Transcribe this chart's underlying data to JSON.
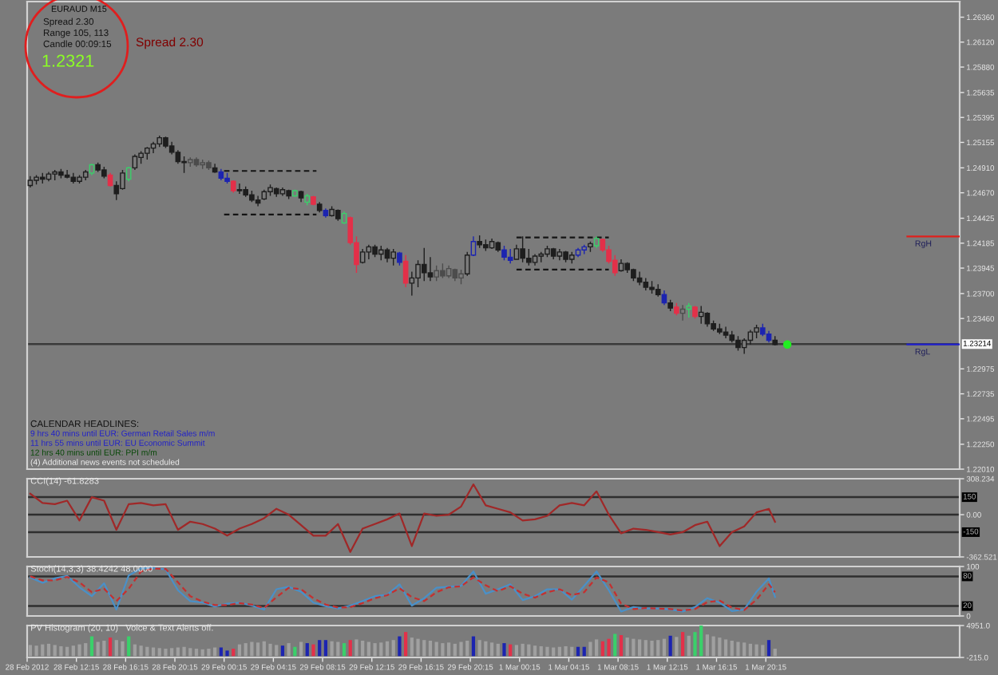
{
  "chart_data": [
    {
      "type": "candlestick",
      "title": "EURAUD M15",
      "x": [
        "2012-02-28T08:30",
        "2012-02-28T09:00",
        "2012-02-28T09:30",
        "2012-02-28T10:00",
        "2012-02-28T10:30",
        "2012-02-28T11:00",
        "2012-02-28T11:30",
        "2012-02-28T12:00",
        "2012-02-28T12:30",
        "2012-02-28T13:00",
        "2012-02-28T13:30",
        "2012-02-28T14:00",
        "2012-02-28T14:30",
        "2012-02-28T15:00",
        "2012-02-28T15:30",
        "2012-02-28T16:00",
        "2012-02-28T16:30",
        "2012-02-28T17:00",
        "2012-02-28T17:30",
        "2012-02-28T18:00",
        "2012-02-28T18:30",
        "2012-02-28T19:00",
        "2012-02-28T19:30",
        "2012-02-28T20:00",
        "2012-02-28T20:30",
        "2012-02-28T21:00",
        "2012-02-28T21:30",
        "2012-02-28T22:00",
        "2012-02-28T22:30",
        "2012-02-28T23:00",
        "2012-02-28T23:30",
        "2012-02-29T00:00",
        "2012-02-29T00:30",
        "2012-02-29T01:00",
        "2012-02-29T01:30",
        "2012-02-29T02:00",
        "2012-02-29T02:30",
        "2012-02-29T03:00",
        "2012-02-29T03:30",
        "2012-02-29T04:00",
        "2012-02-29T04:30",
        "2012-02-29T05:00",
        "2012-02-29T05:30",
        "2012-02-29T06:00",
        "2012-02-29T06:30",
        "2012-02-29T07:00",
        "2012-02-29T07:30",
        "2012-02-29T08:00",
        "2012-02-29T08:30",
        "2012-02-29T09:00",
        "2012-02-29T09:30",
        "2012-02-29T10:00",
        "2012-02-29T10:30",
        "2012-02-29T11:00",
        "2012-02-29T11:30",
        "2012-02-29T12:00",
        "2012-02-29T12:30",
        "2012-02-29T13:00",
        "2012-02-29T13:30",
        "2012-02-29T14:00",
        "2012-02-29T14:30",
        "2012-02-29T15:00",
        "2012-02-29T15:30",
        "2012-02-29T16:00",
        "2012-02-29T16:30",
        "2012-02-29T17:00",
        "2012-02-29T17:30",
        "2012-02-29T18:00",
        "2012-02-29T18:30",
        "2012-02-29T19:00",
        "2012-02-29T19:30",
        "2012-02-29T20:00",
        "2012-02-29T20:30",
        "2012-02-29T21:00",
        "2012-02-29T21:30",
        "2012-02-29T22:00",
        "2012-02-29T22:30",
        "2012-02-29T23:00",
        "2012-02-29T23:30",
        "2012-03-01T00:00",
        "2012-03-01T00:30",
        "2012-03-01T01:00",
        "2012-03-01T01:30",
        "2012-03-01T02:00",
        "2012-03-01T02:30",
        "2012-03-01T03:00",
        "2012-03-01T03:30",
        "2012-03-01T04:00",
        "2012-03-01T04:30",
        "2012-03-01T05:00",
        "2012-03-01T05:30",
        "2012-03-01T06:00",
        "2012-03-01T06:30",
        "2012-03-01T07:00",
        "2012-03-01T07:30",
        "2012-03-01T08:00",
        "2012-03-01T08:30",
        "2012-03-01T09:00",
        "2012-03-01T09:30",
        "2012-03-01T10:00",
        "2012-03-01T10:30",
        "2012-03-01T11:00",
        "2012-03-01T11:30",
        "2012-03-01T12:00",
        "2012-03-01T12:30",
        "2012-03-01T13:00",
        "2012-03-01T13:30",
        "2012-03-01T14:00",
        "2012-03-01T14:30",
        "2012-03-01T15:00",
        "2012-03-01T15:30",
        "2012-03-01T16:00",
        "2012-03-01T16:30",
        "2012-03-01T17:00",
        "2012-03-01T17:30",
        "2012-03-01T18:00",
        "2012-03-01T18:30",
        "2012-03-01T19:00",
        "2012-03-01T19:30",
        "2012-03-01T20:00",
        "2012-03-01T20:30",
        "2012-03-01T21:00"
      ],
      "ohlc": [
        [
          1.2474,
          1.2483,
          1.2472,
          1.2479
        ],
        [
          1.2479,
          1.2484,
          1.2475,
          1.2482
        ],
        [
          1.2482,
          1.2486,
          1.2476,
          1.248
        ],
        [
          1.248,
          1.2487,
          1.2478,
          1.2485
        ],
        [
          1.2485,
          1.2489,
          1.2479,
          1.2487
        ],
        [
          1.2487,
          1.249,
          1.2481,
          1.2484
        ],
        [
          1.2484,
          1.2489,
          1.2481,
          1.2482
        ],
        [
          1.2482,
          1.2486,
          1.2476,
          1.2478
        ],
        [
          1.2478,
          1.2484,
          1.2476,
          1.2482
        ],
        [
          1.2482,
          1.2489,
          1.2479,
          1.2487
        ],
        [
          1.2486,
          1.2495,
          1.2484,
          1.2494
        ],
        [
          1.2494,
          1.2496,
          1.2487,
          1.2489
        ],
        [
          1.2489,
          1.2492,
          1.2481,
          1.2483
        ],
        [
          1.2484,
          1.2486,
          1.2473,
          1.2474
        ],
        [
          1.2474,
          1.2478,
          1.246,
          1.2466
        ],
        [
          1.2471,
          1.2489,
          1.247,
          1.2486
        ],
        [
          1.248,
          1.2492,
          1.2478,
          1.2491
        ],
        [
          1.2491,
          1.2504,
          1.2489,
          1.2502
        ],
        [
          1.2501,
          1.2507,
          1.2495,
          1.2505
        ],
        [
          1.2505,
          1.2511,
          1.2499,
          1.251
        ],
        [
          1.251,
          1.2516,
          1.2505,
          1.2514
        ],
        [
          1.2514,
          1.2522,
          1.2511,
          1.252
        ],
        [
          1.252,
          1.2521,
          1.251,
          1.2512
        ],
        [
          1.2512,
          1.2516,
          1.2504,
          1.2506
        ],
        [
          1.2506,
          1.2508,
          1.2495,
          1.2497
        ],
        [
          1.2497,
          1.2502,
          1.2486,
          1.2496
        ],
        [
          1.2496,
          1.2501,
          1.2492,
          1.2499
        ],
        [
          1.2499,
          1.2501,
          1.2492,
          1.2494
        ],
        [
          1.2494,
          1.2499,
          1.249,
          1.2496
        ],
        [
          1.2496,
          1.2498,
          1.2489,
          1.2491
        ],
        [
          1.2491,
          1.2495,
          1.2486,
          1.2487
        ],
        [
          1.2487,
          1.249,
          1.2479,
          1.2481
        ],
        [
          1.2481,
          1.2486,
          1.2476,
          1.2478
        ],
        [
          1.2478,
          1.2479,
          1.2467,
          1.2469
        ],
        [
          1.2469,
          1.2476,
          1.2466,
          1.247
        ],
        [
          1.247,
          1.2473,
          1.2463,
          1.2465
        ],
        [
          1.2465,
          1.2469,
          1.2458,
          1.246
        ],
        [
          1.246,
          1.2464,
          1.2454,
          1.2457
        ],
        [
          1.2461,
          1.247,
          1.246,
          1.2468
        ],
        [
          1.2468,
          1.2475,
          1.2464,
          1.2472
        ],
        [
          1.2471,
          1.2472,
          1.2463,
          1.2466
        ],
        [
          1.2466,
          1.2472,
          1.2464,
          1.247
        ],
        [
          1.2469,
          1.247,
          1.2461,
          1.2464
        ],
        [
          1.2464,
          1.247,
          1.2463,
          1.2469
        ],
        [
          1.2468,
          1.2469,
          1.2458,
          1.2462
        ],
        [
          1.2458,
          1.2466,
          1.2455,
          1.2464
        ],
        [
          1.2463,
          1.2464,
          1.2455,
          1.2456
        ],
        [
          1.2456,
          1.2458,
          1.2448,
          1.245
        ],
        [
          1.245,
          1.2452,
          1.2443,
          1.2445
        ],
        [
          1.2445,
          1.2454,
          1.2444,
          1.2451
        ],
        [
          1.245,
          1.2451,
          1.244,
          1.2442
        ],
        [
          1.2438,
          1.2449,
          1.2437,
          1.2447
        ],
        [
          1.2443,
          1.2444,
          1.2417,
          1.2419
        ],
        [
          1.2419,
          1.2425,
          1.239,
          1.2398
        ],
        [
          1.24,
          1.2413,
          1.2399,
          1.241
        ],
        [
          1.241,
          1.2417,
          1.2403,
          1.2415
        ],
        [
          1.2415,
          1.2417,
          1.2405,
          1.2408
        ],
        [
          1.2408,
          1.2416,
          1.2402,
          1.2412
        ],
        [
          1.2412,
          1.2414,
          1.24,
          1.2404
        ],
        [
          1.2404,
          1.2413,
          1.2397,
          1.241
        ],
        [
          1.2409,
          1.241,
          1.2397,
          1.24
        ],
        [
          1.2401,
          1.2407,
          1.2376,
          1.238
        ],
        [
          1.238,
          1.2391,
          1.2368,
          1.2385
        ],
        [
          1.2385,
          1.2402,
          1.2376,
          1.2398
        ],
        [
          1.2398,
          1.2414,
          1.2382,
          1.239
        ],
        [
          1.239,
          1.2405,
          1.2382,
          1.2386
        ],
        [
          1.2386,
          1.2397,
          1.2382,
          1.2392
        ],
        [
          1.2392,
          1.2399,
          1.2385,
          1.2387
        ],
        [
          1.2387,
          1.2397,
          1.2385,
          1.2394
        ],
        [
          1.2393,
          1.2394,
          1.2382,
          1.2385
        ],
        [
          1.2385,
          1.2393,
          1.2379,
          1.2389
        ],
        [
          1.2389,
          1.241,
          1.2387,
          1.2407
        ],
        [
          1.2407,
          1.2425,
          1.2406,
          1.242
        ],
        [
          1.242,
          1.2426,
          1.2414,
          1.2417
        ],
        [
          1.2417,
          1.2422,
          1.2411,
          1.2414
        ],
        [
          1.2414,
          1.2423,
          1.2413,
          1.242
        ],
        [
          1.2419,
          1.242,
          1.241,
          1.2412
        ],
        [
          1.2412,
          1.2416,
          1.2402,
          1.2405
        ],
        [
          1.2405,
          1.2413,
          1.2399,
          1.2402
        ],
        [
          1.2403,
          1.2417,
          1.2403,
          1.2413
        ],
        [
          1.2413,
          1.2425,
          1.24,
          1.2404
        ],
        [
          1.2404,
          1.2413,
          1.2397,
          1.24
        ],
        [
          1.24,
          1.2408,
          1.2397,
          1.2406
        ],
        [
          1.2406,
          1.241,
          1.24,
          1.2408
        ],
        [
          1.2408,
          1.2416,
          1.2405,
          1.2413
        ],
        [
          1.2413,
          1.2414,
          1.2403,
          1.2406
        ],
        [
          1.2406,
          1.2413,
          1.2402,
          1.241
        ],
        [
          1.241,
          1.2411,
          1.24,
          1.2403
        ],
        [
          1.2403,
          1.241,
          1.2399,
          1.2407
        ],
        [
          1.2407,
          1.2414,
          1.2405,
          1.2412
        ],
        [
          1.2412,
          1.2417,
          1.2408,
          1.2415
        ],
        [
          1.2415,
          1.242,
          1.241,
          1.2418
        ],
        [
          1.2416,
          1.2425,
          1.2414,
          1.2423
        ],
        [
          1.2422,
          1.2423,
          1.241,
          1.2412
        ],
        [
          1.2412,
          1.2416,
          1.2399,
          1.2401
        ],
        [
          1.2402,
          1.2407,
          1.2387,
          1.239
        ],
        [
          1.2392,
          1.2403,
          1.2391,
          1.2399
        ],
        [
          1.2399,
          1.24,
          1.239,
          1.2393
        ],
        [
          1.2393,
          1.2394,
          1.2382,
          1.2385
        ],
        [
          1.2385,
          1.2391,
          1.2378,
          1.2381
        ],
        [
          1.2381,
          1.2385,
          1.2373,
          1.2376
        ],
        [
          1.2376,
          1.2382,
          1.237,
          1.2374
        ],
        [
          1.2374,
          1.2379,
          1.2367,
          1.2369
        ],
        [
          1.2369,
          1.2373,
          1.2359,
          1.2361
        ],
        [
          1.2361,
          1.2364,
          1.2353,
          1.2356
        ],
        [
          1.2357,
          1.2361,
          1.2349,
          1.2351
        ],
        [
          1.2351,
          1.2359,
          1.2344,
          1.2355
        ],
        [
          1.2355,
          1.2361,
          1.2347,
          1.2358
        ],
        [
          1.2357,
          1.2358,
          1.2346,
          1.2348
        ],
        [
          1.2348,
          1.2358,
          1.2341,
          1.2352
        ],
        [
          1.2351,
          1.2352,
          1.2338,
          1.2341
        ],
        [
          1.2341,
          1.2344,
          1.2334,
          1.2336
        ],
        [
          1.2336,
          1.2341,
          1.2331,
          1.2333
        ],
        [
          1.2333,
          1.2338,
          1.2327,
          1.233
        ],
        [
          1.233,
          1.2334,
          1.2323,
          1.2325
        ],
        [
          1.2325,
          1.2329,
          1.2315,
          1.2318
        ],
        [
          1.2318,
          1.2327,
          1.2312,
          1.2325
        ],
        [
          1.2325,
          1.2335,
          1.2321,
          1.2333
        ],
        [
          1.2333,
          1.234,
          1.2327,
          1.2337
        ],
        [
          1.2337,
          1.2341,
          1.2329,
          1.2331
        ],
        [
          1.2331,
          1.2334,
          1.2323,
          1.2325
        ],
        [
          1.2325,
          1.2329,
          1.232,
          1.2321
        ]
      ],
      "colors": [
        "#1e1e1e",
        "#1e1e1e",
        "#1e1e1e",
        "#1e1e1e",
        "#1e1e1e",
        "#1e1e1e",
        "#1e1e1e",
        "#1e1e1e",
        "#1e1e1e",
        "#1e1e1e",
        "#3ad06a",
        "#1e1e1e",
        "#1e1e1e",
        "#e33049",
        "#1e1e1e",
        "#1e1e1e",
        "#3ad06a",
        "#1e1e1e",
        "#1e1e1e",
        "#1e1e1e",
        "#1e1e1e",
        "#1e1e1e",
        "#1e1e1e",
        "#1e1e1e",
        "#1e1e1e",
        "#1e1e1e",
        "#4c4c4c",
        "#4c4c4c",
        "#4c4c4c",
        "#4c4c4c",
        "#1e1e1e",
        "#1c24b0",
        "#1c24b0",
        "#e33049",
        "#1e1e1e",
        "#1e1e1e",
        "#1e1e1e",
        "#1e1e1e",
        "#1e1e1e",
        "#1e1e1e",
        "#1e1e1e",
        "#1e1e1e",
        "#1e1e1e",
        "#3ad06a",
        "#1e1e1e",
        "#3ad06a",
        "#e33049",
        "#1e1e1e",
        "#1c24b0",
        "#1e1e1e",
        "#1e1e1e",
        "#3ad06a",
        "#e33049",
        "#e33049",
        "#1e1e1e",
        "#1e1e1e",
        "#1e1e1e",
        "#1e1e1e",
        "#1e1e1e",
        "#1e1e1e",
        "#1c24b0",
        "#e33049",
        "#1e1e1e",
        "#1e1e1e",
        "#1e1e1e",
        "#1e1e1e",
        "#4c4c4c",
        "#4c4c4c",
        "#4c4c4c",
        "#4c4c4c",
        "#4c4c4c",
        "#1e1e1e",
        "#1c24b0",
        "#1e1e1e",
        "#1e1e1e",
        "#1e1e1e",
        "#1e1e1e",
        "#1c24b0",
        "#1c24b0",
        "#1e1e1e",
        "#1e1e1e",
        "#1e1e1e",
        "#1e1e1e",
        "#1e1e1e",
        "#1e1e1e",
        "#1e1e1e",
        "#1e1e1e",
        "#1e1e1e",
        "#1e1e1e",
        "#1c24b0",
        "#1c24b0",
        "#1e1e1e",
        "#3ad06a",
        "#e33049",
        "#e33049",
        "#e33049",
        "#1e1e1e",
        "#1e1e1e",
        "#1e1e1e",
        "#1e1e1e",
        "#1e1e1e",
        "#1e1e1e",
        "#1e1e1e",
        "#1c24b0",
        "#1e1e1e",
        "#e33049",
        "#4c4c4c",
        "#3ad06a",
        "#e33049",
        "#1e1e1e",
        "#1e1e1e",
        "#1e1e1e",
        "#1e1e1e",
        "#1e1e1e",
        "#1e1e1e",
        "#1e1e1e",
        "#1e1e1e",
        "#1e1e1e",
        "#1e1e1e",
        "#1c24b0",
        "#1c24b0",
        "#1e1e1e"
      ],
      "series": [
        {
          "type": "line",
          "x": [
            "2012-02-29T00:15",
            "2012-02-29T07:45"
          ],
          "values": [
            1.2488,
            1.2488
          ],
          "color": "#141414",
          "line_style": "dashed"
        },
        {
          "type": "line",
          "x": [
            "2012-02-29T00:15",
            "2012-02-29T07:45"
          ],
          "values": [
            1.2446,
            1.2446
          ],
          "color": "#141414",
          "line_style": "dashed"
        },
        {
          "type": "line",
          "x": [
            "2012-03-01T00:00",
            "2012-03-01T07:30"
          ],
          "values": [
            1.2424,
            1.2424
          ],
          "color": "#141414",
          "line_style": "dashed"
        },
        {
          "type": "line",
          "x": [
            "2012-03-01T00:00",
            "2012-03-01T07:30"
          ],
          "values": [
            1.2393,
            1.2393
          ],
          "color": "#141414",
          "line_style": "dashed"
        },
        {
          "type": "line",
          "x": [
            "2012-03-02T07:45",
            "2012-03-02T12:00"
          ],
          "values": [
            1.2425,
            1.2425
          ],
          "color": "#e0201c"
        },
        {
          "type": "line",
          "x": [
            "2012-03-02T07:45",
            "2012-03-02T12:00"
          ],
          "values": [
            1.2321,
            1.2321
          ],
          "color": "#2020d0"
        },
        {
          "type": "scatter",
          "x": [
            "2012-03-01T22:00"
          ],
          "values": [
            1.2321
          ],
          "color": "#22ee22",
          "marker": "circle"
        }
      ],
      "ref_lines": [
        {
          "axis": "y",
          "value": 1.23214,
          "label": "1.23214",
          "color": "#3a3a3a"
        }
      ],
      "annotations": [
        "Spread 2.30",
        "Range 105, 113",
        "Candle 00:09:15",
        "1.2321",
        "Spread 2.30",
        "CALENDAR HEADLINES:",
        "9 hrs 40 mins until EUR: German Retail Sales m/m",
        "11 hrs 55 mins until EUR: EU Economic Summit",
        "12 hrs 40 mins until EUR: PPI m/m",
        "(4) Additional news events not scheduled",
        {
          "text": "RgH",
          "x": "2012-03-02T08:00",
          "y": 1.2425
        },
        {
          "text": "RgL",
          "x": "2012-03-02T08:00",
          "y": 1.2321
        }
      ],
      "xlim": [
        "2012-02-28T08:15",
        "2012-03-02T12:00"
      ],
      "ylim": [
        1.2201,
        1.2651
      ],
      "yticks": [
        {
          "value": 1.2636,
          "label": "1.26360"
        },
        {
          "value": 1.2612,
          "label": "1.26120"
        },
        {
          "value": 1.2588,
          "label": "1.25880"
        },
        {
          "value": 1.25635,
          "label": "1.25635"
        },
        {
          "value": 1.25395,
          "label": "1.25395"
        },
        {
          "value": 1.25155,
          "label": "1.25155"
        },
        {
          "value": 1.2491,
          "label": "1.24910"
        },
        {
          "value": 1.2467,
          "label": "1.24670"
        },
        {
          "value": 1.24425,
          "label": "1.24425"
        },
        {
          "value": 1.24185,
          "label": "1.24185"
        },
        {
          "value": 1.23945,
          "label": "1.23945"
        },
        {
          "value": 1.237,
          "label": "1.23700"
        },
        {
          "value": 1.2346,
          "label": "1.23460"
        },
        {
          "value": 1.22975,
          "label": "1.22975"
        },
        {
          "value": 1.22735,
          "label": "1.22735"
        },
        {
          "value": 1.22495,
          "label": "1.22495"
        },
        {
          "value": 1.2225,
          "label": "1.22250"
        },
        {
          "value": 1.2201,
          "label": "1.22010"
        }
      ],
      "tick_labels": "y"
    },
    {
      "type": "line",
      "title": "CCI(14) -61.8283",
      "x": [
        "2012-02-28T08:30",
        "2012-02-28T09:30",
        "2012-02-28T10:30",
        "2012-02-28T11:30",
        "2012-02-28T12:30",
        "2012-02-28T13:30",
        "2012-02-28T14:30",
        "2012-02-28T15:30",
        "2012-02-28T16:30",
        "2012-02-28T17:30",
        "2012-02-28T18:30",
        "2012-02-28T19:30",
        "2012-02-28T20:30",
        "2012-02-28T21:30",
        "2012-02-28T22:30",
        "2012-02-28T23:30",
        "2012-02-29T00:30",
        "2012-02-29T01:30",
        "2012-02-29T02:30",
        "2012-02-29T03:30",
        "2012-02-29T04:30",
        "2012-02-29T05:30",
        "2012-02-29T06:30",
        "2012-02-29T07:30",
        "2012-02-29T08:30",
        "2012-02-29T09:30",
        "2012-02-29T10:30",
        "2012-02-29T11:30",
        "2012-02-29T12:30",
        "2012-02-29T13:30",
        "2012-02-29T14:30",
        "2012-02-29T15:30",
        "2012-02-29T16:30",
        "2012-02-29T17:30",
        "2012-02-29T18:30",
        "2012-02-29T19:30",
        "2012-02-29T20:30",
        "2012-02-29T21:30",
        "2012-02-29T22:30",
        "2012-02-29T23:30",
        "2012-03-01T00:30",
        "2012-03-01T01:30",
        "2012-03-01T02:30",
        "2012-03-01T03:30",
        "2012-03-01T04:30",
        "2012-03-01T05:30",
        "2012-03-01T06:30",
        "2012-03-01T07:30",
        "2012-03-01T08:30",
        "2012-03-01T09:30",
        "2012-03-01T10:30",
        "2012-03-01T11:30",
        "2012-03-01T12:30",
        "2012-03-01T13:30",
        "2012-03-01T14:30",
        "2012-03-01T15:30",
        "2012-03-01T16:30",
        "2012-03-01T17:30",
        "2012-03-01T18:30",
        "2012-03-01T19:30",
        "2012-03-01T20:30",
        "2012-03-01T21:00"
      ],
      "series": [
        {
          "color": "#a02828",
          "values": [
            180,
            100,
            90,
            120,
            -50,
            150,
            120,
            -130,
            90,
            100,
            80,
            90,
            -130,
            -60,
            -80,
            -120,
            -180,
            -120,
            -80,
            -30,
            50,
            0,
            -90,
            -180,
            -180,
            -80,
            -320,
            -120,
            -80,
            -40,
            10,
            -270,
            10,
            -10,
            0,
            70,
            260,
            80,
            50,
            20,
            -50,
            -40,
            -10,
            80,
            100,
            80,
            200,
            0,
            -160,
            -120,
            -130,
            -150,
            -170,
            -150,
            -90,
            -60,
            -270,
            -150,
            -100,
            20,
            50,
            -61.8283
          ]
        }
      ],
      "xlim": [
        "2012-02-28T08:15",
        "2012-03-02T12:00"
      ],
      "ylim": [
        -362.521,
        308.234
      ],
      "yticks": [
        {
          "value": 308.234,
          "label": "308.234"
        },
        {
          "value": 0,
          "label": "0.00"
        },
        {
          "value": -362.521,
          "label": "-362.521"
        }
      ],
      "ref_lines": [
        {
          "axis": "y",
          "value": 150,
          "label": "150",
          "color": "#2e2e2e"
        },
        {
          "axis": "y",
          "value": 0,
          "color": "#2e2e2e"
        },
        {
          "axis": "y",
          "value": -150,
          "label": "-150",
          "color": "#2e2e2e"
        }
      ],
      "tick_labels": "y"
    },
    {
      "type": "line",
      "title": "Stoch(14,3,3) 38.4242 48.0000",
      "x": [
        "2012-02-28T08:30",
        "2012-02-28T09:30",
        "2012-02-28T10:30",
        "2012-02-28T11:30",
        "2012-02-28T12:30",
        "2012-02-28T13:30",
        "2012-02-28T14:30",
        "2012-02-28T15:30",
        "2012-02-28T16:30",
        "2012-02-28T17:30",
        "2012-02-28T18:30",
        "2012-02-28T19:30",
        "2012-02-28T20:30",
        "2012-02-28T21:30",
        "2012-02-28T22:30",
        "2012-02-28T23:30",
        "2012-02-29T00:30",
        "2012-02-29T01:30",
        "2012-02-29T02:30",
        "2012-02-29T03:30",
        "2012-02-29T04:30",
        "2012-02-29T05:30",
        "2012-02-29T06:30",
        "2012-02-29T07:30",
        "2012-02-29T08:30",
        "2012-02-29T09:30",
        "2012-02-29T10:30",
        "2012-02-29T11:30",
        "2012-02-29T12:30",
        "2012-02-29T13:30",
        "2012-02-29T14:30",
        "2012-02-29T15:30",
        "2012-02-29T16:30",
        "2012-02-29T17:30",
        "2012-02-29T18:30",
        "2012-02-29T19:30",
        "2012-02-29T20:30",
        "2012-02-29T21:30",
        "2012-02-29T22:30",
        "2012-02-29T23:30",
        "2012-03-01T00:30",
        "2012-03-01T01:30",
        "2012-03-01T02:30",
        "2012-03-01T03:30",
        "2012-03-01T04:30",
        "2012-03-01T05:30",
        "2012-03-01T06:30",
        "2012-03-01T07:30",
        "2012-03-01T08:30",
        "2012-03-01T09:30",
        "2012-03-01T10:30",
        "2012-03-01T11:30",
        "2012-03-01T12:30",
        "2012-03-01T13:30",
        "2012-03-01T14:30",
        "2012-03-01T15:30",
        "2012-03-01T16:30",
        "2012-03-01T17:30",
        "2012-03-01T18:30",
        "2012-03-01T19:30",
        "2012-03-01T20:30",
        "2012-03-01T21:00"
      ],
      "series": [
        {
          "color": "#4a90c8",
          "values": [
            78,
            67,
            76,
            81,
            58,
            40,
            66,
            13,
            82,
            96,
            97,
            94,
            52,
            30,
            27,
            19,
            25,
            27,
            21,
            13,
            54,
            59,
            49,
            27,
            20,
            15,
            21,
            30,
            40,
            43,
            64,
            21,
            36,
            57,
            59,
            61,
            90,
            45,
            54,
            64,
            32,
            40,
            54,
            54,
            33,
            61,
            90,
            52,
            9,
            18,
            15,
            15,
            13,
            9,
            18,
            36,
            27,
            10,
            13,
            49,
            76,
            38.4242
          ]
        },
        {
          "color": "#c43030",
          "line_style": "dashed",
          "values": [
            80,
            72,
            72,
            79,
            68,
            48,
            55,
            30,
            55,
            90,
            96,
            95,
            68,
            40,
            29,
            22,
            22,
            26,
            23,
            16,
            38,
            57,
            54,
            36,
            23,
            17,
            18,
            26,
            36,
            42,
            56,
            38,
            30,
            48,
            58,
            60,
            78,
            62,
            50,
            60,
            45,
            37,
            48,
            54,
            42,
            48,
            78,
            68,
            25,
            14,
            16,
            15,
            14,
            11,
            14,
            28,
            31,
            17,
            12,
            33,
            64,
            48.0
          ]
        }
      ],
      "xlim": [
        "2012-02-28T08:15",
        "2012-03-02T12:00"
      ],
      "ylim": [
        0,
        100
      ],
      "yticks": [
        100,
        0
      ],
      "ref_lines": [
        {
          "axis": "y",
          "value": 80,
          "label": "80",
          "color": "#2e2e2e"
        },
        {
          "axis": "y",
          "value": 20,
          "label": "20",
          "color": "#2e2e2e"
        }
      ],
      "tick_labels": "y"
    },
    {
      "type": "bar",
      "title": "PV Histogram (20, 10)   Voice & Text Alerts off.",
      "x": [
        "2012-02-28T08:30",
        "2012-02-28T09:00",
        "2012-02-28T09:30",
        "2012-02-28T10:00",
        "2012-02-28T10:30",
        "2012-02-28T11:00",
        "2012-02-28T11:30",
        "2012-02-28T12:00",
        "2012-02-28T12:30",
        "2012-02-28T13:00",
        "2012-02-28T13:30",
        "2012-02-28T14:00",
        "2012-02-28T14:30",
        "2012-02-28T15:00",
        "2012-02-28T15:30",
        "2012-02-28T16:00",
        "2012-02-28T16:30",
        "2012-02-28T17:00",
        "2012-02-28T17:30",
        "2012-02-28T18:00",
        "2012-02-28T18:30",
        "2012-02-28T19:00",
        "2012-02-28T19:30",
        "2012-02-28T20:00",
        "2012-02-28T20:30",
        "2012-02-28T21:00",
        "2012-02-28T21:30",
        "2012-02-28T22:00",
        "2012-02-28T22:30",
        "2012-02-28T23:00",
        "2012-02-28T23:30",
        "2012-02-29T00:00",
        "2012-02-29T00:30",
        "2012-02-29T01:00",
        "2012-02-29T01:30",
        "2012-02-29T02:00",
        "2012-02-29T02:30",
        "2012-02-29T03:00",
        "2012-02-29T03:30",
        "2012-02-29T04:00",
        "2012-02-29T04:30",
        "2012-02-29T05:00",
        "2012-02-29T05:30",
        "2012-02-29T06:00",
        "2012-02-29T06:30",
        "2012-02-29T07:00",
        "2012-02-29T07:30",
        "2012-02-29T08:00",
        "2012-02-29T08:30",
        "2012-02-29T09:00",
        "2012-02-29T09:30",
        "2012-02-29T10:00",
        "2012-02-29T10:30",
        "2012-02-29T11:00",
        "2012-02-29T11:30",
        "2012-02-29T12:00",
        "2012-02-29T12:30",
        "2012-02-29T13:00",
        "2012-02-29T13:30",
        "2012-02-29T14:00",
        "2012-02-29T14:30",
        "2012-02-29T15:00",
        "2012-02-29T15:30",
        "2012-02-29T16:00",
        "2012-02-29T16:30",
        "2012-02-29T17:00",
        "2012-02-29T17:30",
        "2012-02-29T18:00",
        "2012-02-29T18:30",
        "2012-02-29T19:00",
        "2012-02-29T19:30",
        "2012-02-29T20:00",
        "2012-02-29T20:30",
        "2012-02-29T21:00",
        "2012-02-29T21:30",
        "2012-02-29T22:00",
        "2012-02-29T22:30",
        "2012-02-29T23:00",
        "2012-02-29T23:30",
        "2012-03-01T00:00",
        "2012-03-01T00:30",
        "2012-03-01T01:00",
        "2012-03-01T01:30",
        "2012-03-01T02:00",
        "2012-03-01T02:30",
        "2012-03-01T03:00",
        "2012-03-01T03:30",
        "2012-03-01T04:00",
        "2012-03-01T04:30",
        "2012-03-01T05:00",
        "2012-03-01T05:30",
        "2012-03-01T06:00",
        "2012-03-01T06:30",
        "2012-03-01T07:00",
        "2012-03-01T07:30",
        "2012-03-01T08:00",
        "2012-03-01T08:30",
        "2012-03-01T09:00",
        "2012-03-01T09:30",
        "2012-03-01T10:00",
        "2012-03-01T10:30",
        "2012-03-01T11:00",
        "2012-03-01T11:30",
        "2012-03-01T12:00",
        "2012-03-01T12:30",
        "2012-03-01T13:00",
        "2012-03-01T13:30",
        "2012-03-01T14:00",
        "2012-03-01T14:30",
        "2012-03-01T15:00",
        "2012-03-01T15:30",
        "2012-03-01T16:00",
        "2012-03-01T16:30",
        "2012-03-01T17:00",
        "2012-03-01T17:30",
        "2012-03-01T18:00",
        "2012-03-01T18:30",
        "2012-03-01T19:00",
        "2012-03-01T19:30",
        "2012-03-01T20:00",
        "2012-03-01T20:30",
        "2012-03-01T21:00"
      ],
      "values": [
        1800,
        1700,
        1900,
        2000,
        1800,
        1600,
        1500,
        1700,
        1900,
        2100,
        3200,
        2300,
        2500,
        3000,
        2600,
        2400,
        3200,
        1900,
        1700,
        1500,
        1400,
        1300,
        1200,
        1300,
        1400,
        1500,
        1300,
        1200,
        1100,
        1200,
        1400,
        1400,
        900,
        1200,
        1900,
        2100,
        2300,
        2200,
        2400,
        2000,
        1800,
        1700,
        2100,
        1500,
        2300,
        2100,
        1900,
        2600,
        2600,
        2400,
        2300,
        2100,
        2600,
        2700,
        2500,
        2300,
        2100,
        2200,
        2400,
        2600,
        3200,
        3900,
        3000,
        2800,
        2600,
        2500,
        2300,
        2100,
        2200,
        2000,
        2300,
        2500,
        3200,
        2600,
        2400,
        2200,
        2000,
        2100,
        1900,
        1800,
        2000,
        1900,
        1700,
        1600,
        1500,
        1400,
        1500,
        1600,
        1500,
        1500,
        1500,
        2300,
        2700,
        2400,
        2800,
        3600,
        3400,
        3000,
        2800,
        2700,
        2600,
        2500,
        2600,
        2800,
        3300,
        3100,
        3900,
        3300,
        3900,
        4951,
        3500,
        3200,
        3000,
        2700,
        2500,
        2300,
        2200,
        2000,
        1900,
        1800,
        2600,
        1200
      ],
      "colors": [
        "#a0a0a0",
        "#a0a0a0",
        "#a0a0a0",
        "#a0a0a0",
        "#a0a0a0",
        "#a0a0a0",
        "#a0a0a0",
        "#a0a0a0",
        "#a0a0a0",
        "#a0a0a0",
        "#3ad06a",
        "#a0a0a0",
        "#a0a0a0",
        "#e33049",
        "#a0a0a0",
        "#a0a0a0",
        "#3ad06a",
        "#a0a0a0",
        "#a0a0a0",
        "#a0a0a0",
        "#a0a0a0",
        "#a0a0a0",
        "#a0a0a0",
        "#a0a0a0",
        "#a0a0a0",
        "#a0a0a0",
        "#a0a0a0",
        "#a0a0a0",
        "#a0a0a0",
        "#a0a0a0",
        "#a0a0a0",
        "#1c24b0",
        "#1c24b0",
        "#e33049",
        "#a0a0a0",
        "#a0a0a0",
        "#a0a0a0",
        "#a0a0a0",
        "#a0a0a0",
        "#a0a0a0",
        "#a0a0a0",
        "#1c24b0",
        "#a0a0a0",
        "#3ad06a",
        "#a0a0a0",
        "#1c24b0",
        "#e33049",
        "#1c24b0",
        "#1c24b0",
        "#a0a0a0",
        "#a0a0a0",
        "#3ad06a",
        "#e33049",
        "#a0a0a0",
        "#a0a0a0",
        "#a0a0a0",
        "#a0a0a0",
        "#a0a0a0",
        "#a0a0a0",
        "#a0a0a0",
        "#1c24b0",
        "#e33049",
        "#a0a0a0",
        "#a0a0a0",
        "#a0a0a0",
        "#a0a0a0",
        "#a0a0a0",
        "#a0a0a0",
        "#a0a0a0",
        "#a0a0a0",
        "#a0a0a0",
        "#a0a0a0",
        "#1c24b0",
        "#a0a0a0",
        "#a0a0a0",
        "#a0a0a0",
        "#a0a0a0",
        "#1c24b0",
        "#e33049",
        "#a0a0a0",
        "#a0a0a0",
        "#a0a0a0",
        "#a0a0a0",
        "#a0a0a0",
        "#a0a0a0",
        "#a0a0a0",
        "#a0a0a0",
        "#a0a0a0",
        "#a0a0a0",
        "#1c24b0",
        "#1c24b0",
        "#a0a0a0",
        "#a0a0a0",
        "#e33049",
        "#e33049",
        "#3ad06a",
        "#e33049",
        "#a0a0a0",
        "#a0a0a0",
        "#a0a0a0",
        "#a0a0a0",
        "#a0a0a0",
        "#a0a0a0",
        "#a0a0a0",
        "#1c24b0",
        "#a0a0a0",
        "#e33049",
        "#a0a0a0",
        "#3ad06a",
        "#3ad06a",
        "#a0a0a0",
        "#a0a0a0",
        "#a0a0a0",
        "#a0a0a0",
        "#a0a0a0",
        "#a0a0a0",
        "#a0a0a0",
        "#a0a0a0",
        "#a0a0a0",
        "#a0a0a0",
        "#1c24b0",
        "#a0a0a0"
      ],
      "xlim": [
        "2012-02-28T08:15",
        "2012-03-02T12:00"
      ],
      "ylim": [
        -215,
        4951
      ],
      "yticks": [
        {
          "value": 4951,
          "label": "4951.0"
        },
        {
          "value": -215,
          "label": "-215.0"
        }
      ],
      "xticks": [
        {
          "value": "2012-02-28T08:15",
          "label": "28 Feb 2012"
        },
        {
          "value": "2012-02-28T12:15",
          "label": "28 Feb 12:15"
        },
        {
          "value": "2012-02-28T16:15",
          "label": "28 Feb 16:15"
        },
        {
          "value": "2012-02-28T20:15",
          "label": "28 Feb 20:15"
        },
        {
          "value": "2012-02-29T00:15",
          "label": "29 Feb 00:15"
        },
        {
          "value": "2012-02-29T04:15",
          "label": "29 Feb 04:15"
        },
        {
          "value": "2012-02-29T08:15",
          "label": "29 Feb 08:15"
        },
        {
          "value": "2012-02-29T12:15",
          "label": "29 Feb 12:15"
        },
        {
          "value": "2012-02-29T16:15",
          "label": "29 Feb 16:15"
        },
        {
          "value": "2012-02-29T20:15",
          "label": "29 Feb 20:15"
        },
        {
          "value": "2012-03-01T00:15",
          "label": "1 Mar 00:15"
        },
        {
          "value": "2012-03-01T04:15",
          "label": "1 Mar 04:15"
        },
        {
          "value": "2012-03-01T08:15",
          "label": "1 Mar 08:15"
        },
        {
          "value": "2012-03-01T12:15",
          "label": "1 Mar 12:15"
        },
        {
          "value": "2012-03-01T16:15",
          "label": "1 Mar 16:15"
        },
        {
          "value": "2012-03-01T20:15",
          "label": "1 Mar 20:15"
        }
      ]
    }
  ]
}
